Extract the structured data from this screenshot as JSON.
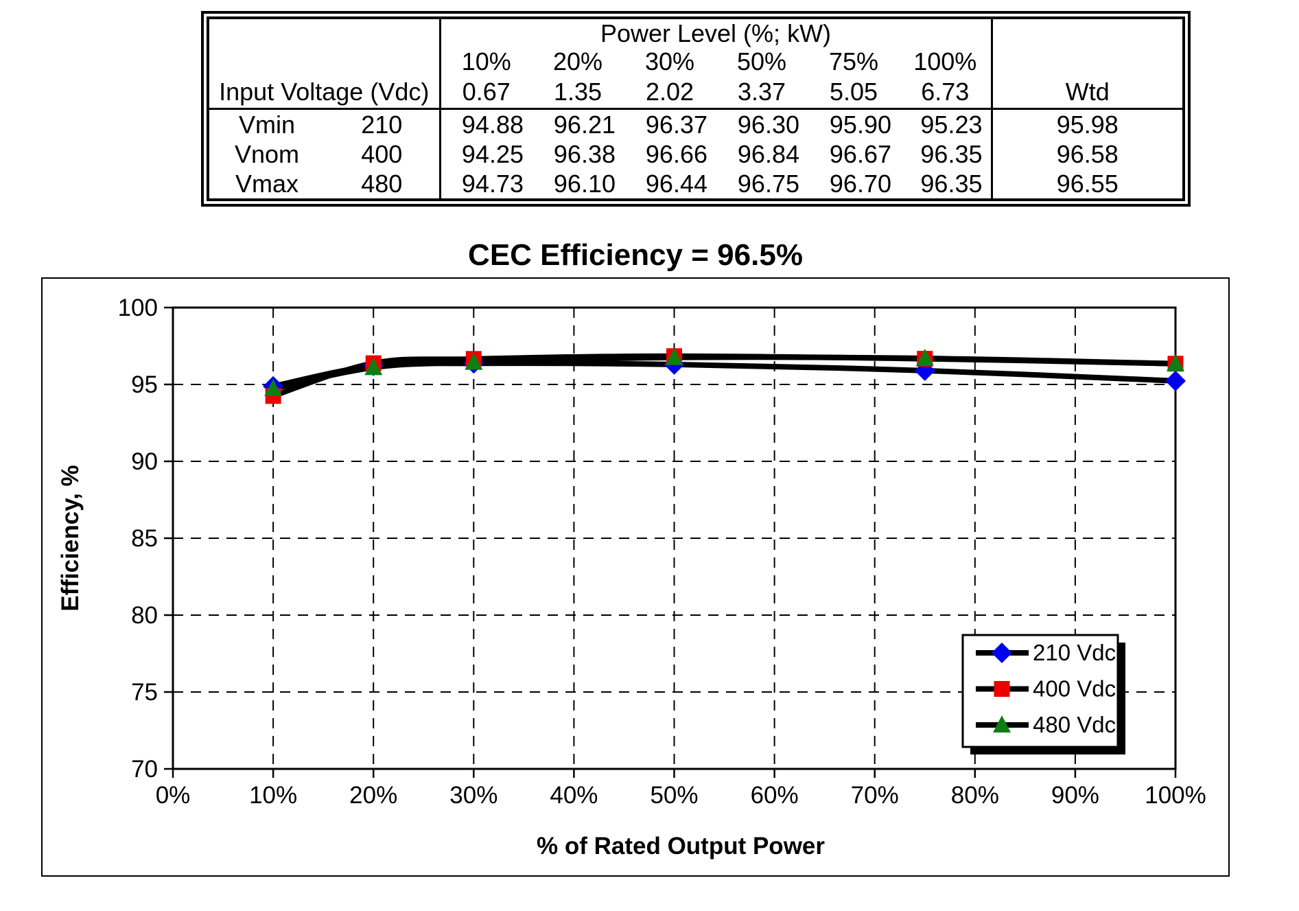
{
  "table": {
    "power_level_header": "Power Level (%; kW)",
    "input_voltage_label": "Input Voltage (Vdc)",
    "wtd_label": "Wtd",
    "percent_headers": [
      "10%",
      "20%",
      "30%",
      "50%",
      "75%",
      "100%"
    ],
    "kw_values": [
      "0.67",
      "1.35",
      "2.02",
      "3.37",
      "5.05",
      "6.73"
    ],
    "rows": [
      {
        "name": "Vmin",
        "voltage": "210",
        "values": [
          "94.88",
          "96.21",
          "96.37",
          "96.30",
          "95.90",
          "95.23"
        ],
        "wtd": "95.98"
      },
      {
        "name": "Vnom",
        "voltage": "400",
        "values": [
          "94.25",
          "96.38",
          "96.66",
          "96.84",
          "96.67",
          "96.35"
        ],
        "wtd": "96.58"
      },
      {
        "name": "Vmax",
        "voltage": "480",
        "values": [
          "94.73",
          "96.10",
          "96.44",
          "96.75",
          "96.70",
          "96.35"
        ],
        "wtd": "96.55"
      }
    ]
  },
  "chart_data": {
    "type": "line",
    "title": "CEC Efficiency = 96.5%",
    "xlabel": "% of Rated Output Power",
    "ylabel": "Efficiency, %",
    "xlim": [
      0,
      100
    ],
    "ylim": [
      70,
      100
    ],
    "x_ticks": [
      0,
      10,
      20,
      30,
      40,
      50,
      60,
      70,
      80,
      90,
      100
    ],
    "x_tick_labels": [
      "0%",
      "10%",
      "20%",
      "30%",
      "40%",
      "50%",
      "60%",
      "70%",
      "80%",
      "90%",
      "100%"
    ],
    "y_ticks": [
      70,
      75,
      80,
      85,
      90,
      95,
      100
    ],
    "grid": "dashed",
    "smooth_lines": true,
    "line_color": "#000000",
    "x": [
      10,
      20,
      30,
      50,
      75,
      100
    ],
    "series": [
      {
        "name": "210 Vdc",
        "marker": "diamond",
        "marker_color": "#0000ee",
        "values": [
          94.88,
          96.21,
          96.37,
          96.3,
          95.9,
          95.23
        ]
      },
      {
        "name": "400 Vdc",
        "marker": "square",
        "marker_color": "#ee0000",
        "values": [
          94.25,
          96.38,
          96.66,
          96.84,
          96.67,
          96.35
        ]
      },
      {
        "name": "480 Vdc",
        "marker": "triangle",
        "marker_color": "#0e7e12",
        "values": [
          94.73,
          96.1,
          96.44,
          96.75,
          96.7,
          96.35
        ]
      }
    ],
    "legend": [
      "210 Vdc",
      "400 Vdc",
      "480 Vdc"
    ],
    "legend_position": "inside-right"
  }
}
